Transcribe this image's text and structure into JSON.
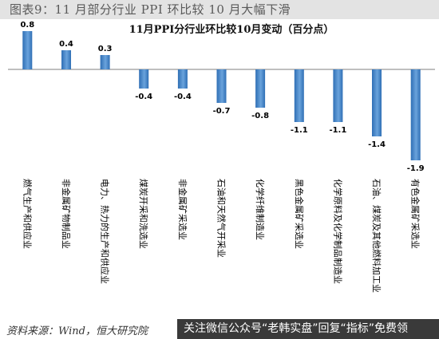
{
  "figure_title": "图表9：11 月部分行业 PPI 环比较 10 月大幅下滑",
  "source": "资料来源：Wind，恒大研究院",
  "watermark": "关注微信公众号“老韩实盘”回复“指标”免费领",
  "colors": {
    "bar": "#2f6fb5",
    "bar_light": "#6aa3dc",
    "axis": "#7f7f7f"
  },
  "chart_data": {
    "type": "bar",
    "title": "11月PPI分行业环比较10月变动（百分点）",
    "categories": [
      "燃气生产和供应业",
      "非金属矿物制品业",
      "电力、热力的生产和供应业",
      "煤炭开采和洗选业",
      "非金属矿采选业",
      "石油和天然气开采业",
      "化学纤维制造业",
      "黑色金属矿采选业",
      "化学原料及化学制品制造业",
      "石油、煤炭及其他燃料加工业",
      "有色金属矿采选业"
    ],
    "values": [
      0.8,
      0.4,
      0.3,
      -0.4,
      -0.4,
      -0.7,
      -0.8,
      -1.1,
      -1.1,
      -1.4,
      -1.9
    ],
    "data_labels": [
      "0.8",
      "0.4",
      "0.3",
      "-0.4",
      "-0.4",
      "-0.7",
      "-0.8",
      "-1.1",
      "-1.1",
      "-1.4",
      "-1.9"
    ],
    "xlabel": "",
    "ylabel": "",
    "ylim": [
      -2.0,
      1.0
    ],
    "grid": false,
    "legend": "none"
  }
}
